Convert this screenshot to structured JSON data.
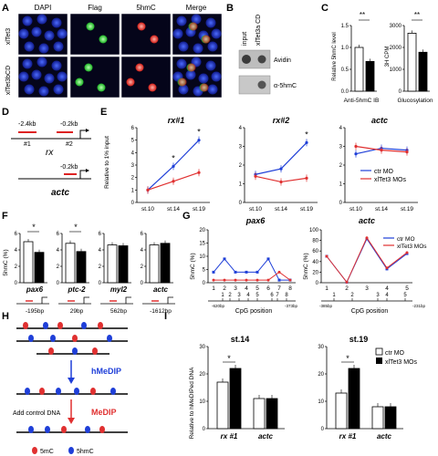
{
  "panels": {
    "A": {
      "label": "A",
      "columns": [
        "DAPI",
        "Flag",
        "5hmC",
        "Merge"
      ],
      "rows": [
        "xlTet3",
        "xlTet3bCD"
      ],
      "colors": {
        "dapi": "#1d2fcf",
        "flag": "#27e33a",
        "hmc": "#e8241f"
      }
    },
    "B": {
      "label": "B",
      "top_labels": [
        "input",
        "xlTet3a CD"
      ],
      "row_labels": [
        "Avidin",
        "α-5hmC"
      ]
    },
    "C": {
      "label": "C",
      "left": {
        "ylabel": "Relative 5hmC level",
        "yticks": [
          "0.0",
          "0.5",
          "1.0",
          "1.5"
        ],
        "xlabel": "Anti-5hmC IB",
        "sig": "**"
      },
      "right": {
        "ylabel": "3H CPM",
        "yticks": [
          "0",
          "1000",
          "2000",
          "3000"
        ],
        "xlabel": "Glucosylation",
        "sig": "**"
      }
    },
    "D": {
      "label": "D",
      "rx_pos": [
        "-2.4kb",
        "-0.2kb"
      ],
      "rx_primers": [
        "#1",
        "#2"
      ],
      "rx_gene": "rx",
      "actc_pos": "-0.2kb",
      "actc_gene": "actc"
    },
    "E": {
      "label": "E",
      "ylabel": "Relative to 1% input",
      "titles": [
        "rx#1",
        "rx#2",
        "actc"
      ],
      "stages": [
        "st.10",
        "st.14",
        "st.19"
      ],
      "yticks_rx1": [
        "0",
        "1",
        "2",
        "3",
        "4",
        "5",
        "6"
      ],
      "yticks_rx2": [
        "0",
        "1",
        "2",
        "3",
        "4"
      ],
      "yticks_actc": [
        "0",
        "1",
        "2",
        "3",
        "4"
      ],
      "legend": [
        "ctr MO",
        "xlTet3 MOs"
      ],
      "sig": "*"
    },
    "F": {
      "label": "F",
      "ylabel": "5hmC (%)",
      "genes": [
        "pax6",
        "ptc-2",
        "myl2",
        "actc"
      ],
      "positions": [
        "-195bp",
        "29bp",
        "562bp",
        "-1612bp"
      ],
      "yticks": [
        "0",
        "2",
        "4",
        "6"
      ],
      "sig": "*"
    },
    "G": {
      "label": "G",
      "pax6": {
        "title": "pax6",
        "ylabel": "5hmC (%)",
        "yticks": [
          "0",
          "5",
          "10",
          "15",
          "20"
        ],
        "xticks": [
          "1",
          "2",
          "3",
          "4",
          "5",
          "6",
          "7",
          "8"
        ],
        "dna_numbers": [
          "1",
          "2",
          "3",
          "4",
          "5",
          "6",
          "7",
          "8"
        ],
        "dna_left": "-620bp",
        "dna_right": "-373bp",
        "xlabel": "CpG position"
      },
      "actc": {
        "title": "actc",
        "ylabel": "5hmC (%)",
        "yticks": [
          "0",
          "20",
          "40",
          "60",
          "80",
          "100"
        ],
        "xticks": [
          "1",
          "2",
          "3",
          "4",
          "5"
        ],
        "dna_numbers": [
          "1",
          "2",
          "3",
          "4",
          "5"
        ],
        "dna_left": "-385bp",
        "dna_right": "-231bp",
        "xlabel": "CpG position"
      },
      "legend": [
        "ctr MO",
        "xlTet3 MOs"
      ]
    },
    "H": {
      "label": "H",
      "step1": "hMeDIP",
      "step2": "MeDIP",
      "add_control": "Add control DNA",
      "legend": [
        "5mC",
        "5hmC"
      ]
    },
    "I": {
      "label": "I",
      "ylabel": "Relative to hMeDIPed DNA",
      "titles": [
        "st.14",
        "st.19"
      ],
      "yticks_left": [
        "0",
        "10",
        "20",
        "30"
      ],
      "yticks_right": [
        "0",
        "10",
        "20",
        "30"
      ],
      "categories": [
        "rx #1",
        "actc"
      ],
      "legend": [
        "ctr MO",
        "xlTet3 MOs"
      ],
      "sig": "*"
    }
  },
  "chart_data": [
    {
      "panel": "C-left",
      "type": "bar",
      "categories": [
        "",
        ""
      ],
      "values": [
        1.0,
        0.68
      ],
      "ylim": [
        0,
        1.5
      ]
    },
    {
      "panel": "C-right",
      "type": "bar",
      "categories": [
        "",
        ""
      ],
      "values": [
        2650,
        1780
      ],
      "ylim": [
        0,
        3000
      ]
    },
    {
      "panel": "E-rx#1",
      "type": "line",
      "x": [
        "st.10",
        "st.14",
        "st.19"
      ],
      "series": [
        {
          "name": "ctr MO",
          "values": [
            1.0,
            2.9,
            5.0
          ]
        },
        {
          "name": "xlTet3 MOs",
          "values": [
            1.0,
            1.7,
            2.4
          ]
        }
      ],
      "ylim": [
        0,
        6
      ]
    },
    {
      "panel": "E-rx#2",
      "type": "line",
      "x": [
        "st.10",
        "st.14",
        "st.19"
      ],
      "series": [
        {
          "name": "ctr MO",
          "values": [
            1.5,
            1.8,
            3.2
          ]
        },
        {
          "name": "xlTet3 MOs",
          "values": [
            1.4,
            1.1,
            1.3
          ]
        }
      ],
      "ylim": [
        0,
        4
      ]
    },
    {
      "panel": "E-actc",
      "type": "line",
      "x": [
        "st.10",
        "st.14",
        "st.19"
      ],
      "series": [
        {
          "name": "ctr MO",
          "values": [
            2.6,
            2.9,
            2.8
          ]
        },
        {
          "name": "xlTet3 MOs",
          "values": [
            3.0,
            2.8,
            2.7
          ]
        }
      ],
      "ylim": [
        0,
        4
      ]
    },
    {
      "panel": "F",
      "type": "bar",
      "categories": [
        "pax6",
        "ptc-2",
        "myl2",
        "actc"
      ],
      "series": [
        {
          "values": [
            5.0,
            4.8,
            4.6,
            4.6
          ]
        },
        {
          "values": [
            3.7,
            3.8,
            4.5,
            4.8
          ]
        }
      ],
      "ylim": [
        0,
        6
      ]
    },
    {
      "panel": "G-pax6",
      "type": "line",
      "x": [
        1,
        2,
        3,
        4,
        5,
        6,
        7,
        8
      ],
      "series": [
        {
          "name": "ctr MO",
          "values": [
            4,
            9,
            4,
            4,
            4,
            9,
            1,
            1
          ]
        },
        {
          "name": "xlTet3 MOs",
          "values": [
            1,
            1,
            1,
            1,
            1,
            1,
            4,
            1
          ]
        }
      ],
      "ylim": [
        0,
        20
      ]
    },
    {
      "panel": "G-actc",
      "type": "line",
      "x": [
        1,
        2,
        3,
        4,
        5
      ],
      "series": [
        {
          "name": "ctr MO",
          "values": [
            50,
            1,
            83,
            26,
            55
          ]
        },
        {
          "name": "xlTet3 MOs",
          "values": [
            50,
            1,
            85,
            28,
            57
          ]
        }
      ],
      "ylim": [
        0,
        100
      ]
    },
    {
      "panel": "I-st.14",
      "type": "bar",
      "categories": [
        "rx #1",
        "actc"
      ],
      "series": [
        {
          "name": "ctr MO",
          "values": [
            17,
            11
          ]
        },
        {
          "name": "xlTet3 MOs",
          "values": [
            22,
            11
          ]
        }
      ],
      "ylim": [
        0,
        30
      ]
    },
    {
      "panel": "I-st.19",
      "type": "bar",
      "categories": [
        "rx #1",
        "actc"
      ],
      "series": [
        {
          "name": "ctr MO",
          "values": [
            13,
            8
          ]
        },
        {
          "name": "xlTet3 MOs",
          "values": [
            22,
            8
          ]
        }
      ],
      "ylim": [
        0,
        30
      ]
    }
  ]
}
